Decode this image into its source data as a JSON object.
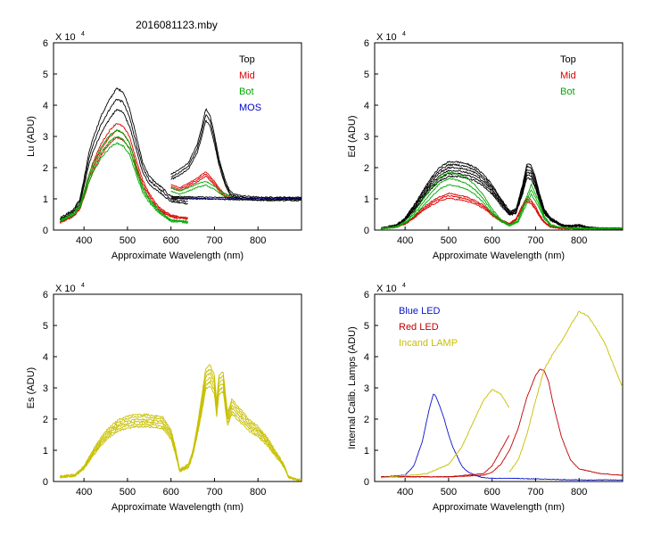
{
  "figure_title": "2016081123.mby",
  "colors": {
    "black": "#000000",
    "red": "#dd0000",
    "green": "#00aa00",
    "blue": "#0000cc",
    "yellow": "#c8c000",
    "darkred": "#c00000",
    "blue_led": "#0a14c8",
    "lamp": "#c8be00"
  },
  "chart_data": [
    {
      "id": "lu",
      "type": "line",
      "ylabel": "Lu (ADU)",
      "xlabel": "Approximate Wavelength (nm)",
      "scale_label": "X 10",
      "scale_exp": "4",
      "xlim": [
        330,
        900
      ],
      "ylim": [
        0,
        6
      ],
      "xticks": [
        400,
        500,
        600,
        700,
        800
      ],
      "yticks": [
        0,
        1,
        2,
        3,
        4,
        5,
        6
      ],
      "legend": [
        {
          "label": "Top",
          "color": "#000000"
        },
        {
          "label": "Mid",
          "color": "#dd0000"
        },
        {
          "label": "Bot",
          "color": "#00aa00"
        },
        {
          "label": "MOS",
          "color": "#0000cc"
        }
      ],
      "series": [
        {
          "name": "Top",
          "color": "#000000",
          "count": 3,
          "jitter": 0.08,
          "noise": 0.06,
          "x": [
            345,
            375,
            390,
            400,
            410,
            420,
            440,
            460,
            475,
            490,
            505,
            520,
            535,
            550,
            565,
            580,
            595,
            600,
            620,
            640
          ],
          "y": [
            0.35,
            0.6,
            0.9,
            1.5,
            2.2,
            2.7,
            3.4,
            3.9,
            4.2,
            4.1,
            3.6,
            2.8,
            2.0,
            1.6,
            1.4,
            1.25,
            1.05,
            1.0,
            0.95,
            0.92
          ]
        },
        {
          "name": "Top-red-band",
          "color": "#000000",
          "count": 3,
          "jitter": 0.05,
          "noise": 0.04,
          "x": [
            600,
            620,
            640,
            660,
            670,
            680,
            690,
            700,
            710,
            725,
            735,
            745,
            760,
            800,
            850,
            900
          ],
          "y": [
            1.7,
            1.85,
            2.05,
            2.6,
            3.1,
            3.7,
            3.5,
            2.9,
            2.2,
            1.5,
            1.2,
            1.1,
            1.05,
            1.0,
            1.0,
            1.0
          ]
        },
        {
          "name": "Mid",
          "color": "#dd0000",
          "count": 3,
          "jitter": 0.07,
          "noise": 0.05,
          "x": [
            345,
            375,
            390,
            400,
            410,
            420,
            440,
            460,
            475,
            490,
            505,
            520,
            535,
            550,
            565,
            580,
            595,
            600,
            620,
            640
          ],
          "y": [
            0.25,
            0.45,
            0.7,
            1.1,
            1.6,
            2.0,
            2.6,
            3.0,
            3.2,
            3.1,
            2.8,
            2.1,
            1.5,
            1.1,
            0.8,
            0.6,
            0.5,
            0.45,
            0.4,
            0.38
          ]
        },
        {
          "name": "Mid-red-band",
          "color": "#dd0000",
          "count": 3,
          "jitter": 0.04,
          "noise": 0.03,
          "x": [
            600,
            620,
            640,
            660,
            670,
            680,
            690,
            700,
            710,
            720,
            730,
            740
          ],
          "y": [
            1.4,
            1.3,
            1.45,
            1.6,
            1.7,
            1.8,
            1.65,
            1.5,
            1.3,
            1.15,
            1.08,
            1.02
          ]
        },
        {
          "name": "Bot",
          "color": "#00aa00",
          "count": 3,
          "jitter": 0.07,
          "noise": 0.05,
          "x": [
            345,
            375,
            390,
            400,
            410,
            420,
            440,
            460,
            475,
            490,
            505,
            520,
            535,
            550,
            565,
            580,
            595,
            600,
            620,
            640
          ],
          "y": [
            0.3,
            0.5,
            0.75,
            1.15,
            1.6,
            1.95,
            2.5,
            2.85,
            3.0,
            2.9,
            2.6,
            1.9,
            1.3,
            0.95,
            0.7,
            0.5,
            0.35,
            0.3,
            0.28,
            0.25
          ]
        },
        {
          "name": "Bot-red-band",
          "color": "#00aa00",
          "count": 2,
          "jitter": 0.04,
          "noise": 0.03,
          "x": [
            600,
            620,
            640,
            660,
            680,
            700,
            715,
            730,
            740
          ],
          "y": [
            1.3,
            1.2,
            1.3,
            1.42,
            1.5,
            1.35,
            1.2,
            1.08,
            1.02
          ]
        },
        {
          "name": "MOS",
          "color": "#0000cc",
          "count": 1,
          "jitter": 0,
          "noise": 0.02,
          "x": [
            600,
            700,
            800,
            900
          ],
          "y": [
            1.05,
            1.0,
            1.0,
            1.0
          ]
        },
        {
          "name": "baseline",
          "color": "#000000",
          "count": 2,
          "jitter": 0.03,
          "noise": 0.03,
          "x": [
            600,
            650,
            700,
            750,
            800,
            850,
            900
          ],
          "y": [
            1.05,
            1.03,
            1.02,
            1.0,
            1.0,
            1.0,
            1.0
          ]
        }
      ]
    },
    {
      "id": "ed",
      "type": "line",
      "ylabel": "Ed  (ADU)",
      "xlabel": "Approximate Wavelength (nm)",
      "scale_label": "X 10",
      "scale_exp": "4",
      "xlim": [
        330,
        900
      ],
      "ylim": [
        0,
        6
      ],
      "xticks": [
        400,
        500,
        600,
        700,
        800
      ],
      "yticks": [
        0,
        1,
        2,
        3,
        4,
        5,
        6
      ],
      "legend": [
        {
          "label": "Top",
          "color": "#000000"
        },
        {
          "label": "Mid",
          "color": "#dd0000"
        },
        {
          "label": "Bot",
          "color": "#00aa00"
        }
      ],
      "series": [
        {
          "name": "Top",
          "color": "#000000",
          "count": 6,
          "jitter": 0.12,
          "noise": 0.05,
          "x": [
            345,
            380,
            400,
            420,
            440,
            460,
            480,
            500,
            520,
            540,
            560,
            580,
            600,
            620,
            640,
            655,
            670,
            680,
            690,
            700,
            710,
            720,
            735,
            760,
            780,
            800,
            820,
            850,
            900
          ],
          "y": [
            0.05,
            0.15,
            0.35,
            0.7,
            1.1,
            1.5,
            1.8,
            1.95,
            1.95,
            1.9,
            1.8,
            1.6,
            1.3,
            0.9,
            0.55,
            0.6,
            1.3,
            1.9,
            1.85,
            1.5,
            1.0,
            0.6,
            0.35,
            0.15,
            0.12,
            0.15,
            0.08,
            0.05,
            0.05
          ]
        },
        {
          "name": "Mid",
          "color": "#dd0000",
          "count": 3,
          "jitter": 0.07,
          "noise": 0.04,
          "x": [
            345,
            380,
            400,
            420,
            440,
            460,
            480,
            500,
            520,
            540,
            560,
            580,
            600,
            620,
            640,
            655,
            670,
            680,
            690,
            700,
            710,
            720,
            735,
            760,
            800,
            850,
            900
          ],
          "y": [
            0.05,
            0.1,
            0.2,
            0.4,
            0.65,
            0.85,
            1.0,
            1.1,
            1.05,
            1.0,
            0.9,
            0.75,
            0.5,
            0.3,
            0.2,
            0.35,
            0.75,
            1.0,
            0.9,
            0.7,
            0.45,
            0.25,
            0.1,
            0.05,
            0.05,
            0.05,
            0.05
          ]
        },
        {
          "name": "Bot",
          "color": "#00aa00",
          "count": 3,
          "jitter": 0.12,
          "noise": 0.04,
          "x": [
            345,
            380,
            400,
            420,
            440,
            460,
            480,
            500,
            520,
            540,
            560,
            580,
            600,
            620,
            640,
            660,
            675,
            690,
            705,
            720,
            735,
            760,
            800,
            850,
            900
          ],
          "y": [
            0.05,
            0.1,
            0.25,
            0.5,
            0.85,
            1.2,
            1.5,
            1.65,
            1.6,
            1.5,
            1.3,
            1.0,
            0.6,
            0.3,
            0.15,
            0.3,
            0.8,
            1.3,
            0.9,
            0.4,
            0.15,
            0.08,
            0.05,
            0.05,
            0.05
          ]
        }
      ]
    },
    {
      "id": "es",
      "type": "line",
      "ylabel": "Es  (ADU)",
      "xlabel": "Approximate Wavelength (nm)",
      "scale_label": "X 10",
      "scale_exp": "4",
      "xlim": [
        330,
        900
      ],
      "ylim": [
        0,
        6
      ],
      "xticks": [
        400,
        500,
        600,
        700,
        800
      ],
      "yticks": [
        0,
        1,
        2,
        3,
        4,
        5,
        6
      ],
      "legend": [],
      "series": [
        {
          "name": "Es",
          "color": "#c8c000",
          "count": 6,
          "jitter": 0.1,
          "noise": 0.06,
          "x": [
            345,
            380,
            400,
            420,
            440,
            460,
            480,
            500,
            520,
            540,
            560,
            580,
            600,
            610,
            620,
            640,
            650,
            660,
            670,
            680,
            690,
            700,
            705,
            710,
            720,
            730,
            740,
            760,
            780,
            800,
            820,
            840,
            860,
            870,
            890,
            900
          ],
          "y": [
            0.15,
            0.2,
            0.45,
            0.9,
            1.3,
            1.6,
            1.8,
            1.9,
            1.95,
            1.95,
            1.92,
            1.9,
            1.5,
            1.0,
            0.35,
            0.5,
            0.9,
            1.6,
            2.4,
            3.3,
            3.4,
            3.1,
            2.3,
            3.1,
            3.2,
            2.0,
            2.4,
            2.1,
            1.8,
            1.6,
            1.3,
            0.9,
            0.5,
            0.15,
            0.05,
            0.05
          ]
        }
      ]
    },
    {
      "id": "lamps",
      "type": "line",
      "ylabel": "Internal Calib. Lamps (ADU)",
      "xlabel": "Approximate Wavelength (nm)",
      "scale_label": "X 10",
      "scale_exp": "4",
      "xlim": [
        330,
        900
      ],
      "ylim": [
        0,
        6
      ],
      "xticks": [
        400,
        500,
        600,
        700,
        800
      ],
      "yticks": [
        0,
        1,
        2,
        3,
        4,
        5,
        6
      ],
      "legend": [
        {
          "label": "Blue LED",
          "color": "#0a14c8"
        },
        {
          "label": "Red LED",
          "color": "#c00000"
        },
        {
          "label": "Incand LAMP",
          "color": "#c8be00"
        }
      ],
      "series": [
        {
          "name": "Blue LED",
          "color": "#0a14c8",
          "count": 1,
          "jitter": 0,
          "noise": 0.02,
          "x": [
            345,
            400,
            420,
            440,
            455,
            465,
            470,
            480,
            490,
            500,
            510,
            520,
            530,
            540,
            560,
            580,
            600,
            650,
            700,
            800,
            900
          ],
          "y": [
            0.15,
            0.2,
            0.5,
            1.3,
            2.3,
            2.8,
            2.75,
            2.4,
            2.0,
            1.5,
            1.1,
            0.8,
            0.5,
            0.35,
            0.2,
            0.12,
            0.1,
            0.1,
            0.08,
            0.05,
            0.05
          ]
        },
        {
          "name": "Red LED",
          "color": "#c00000",
          "count": 1,
          "jitter": 0,
          "noise": 0.02,
          "x": [
            345,
            500,
            580,
            600,
            620,
            640,
            660,
            680,
            700,
            710,
            720,
            730,
            740,
            760,
            780,
            800,
            850,
            900
          ],
          "y": [
            0.15,
            0.15,
            0.2,
            0.3,
            0.55,
            1.0,
            1.7,
            2.7,
            3.4,
            3.6,
            3.55,
            3.2,
            2.5,
            1.4,
            0.7,
            0.4,
            0.25,
            0.2
          ]
        },
        {
          "name": "Red LED-low",
          "color": "#c00000",
          "count": 1,
          "jitter": 0,
          "noise": 0.02,
          "x": [
            345,
            500,
            580,
            600,
            620,
            640
          ],
          "y": [
            0.15,
            0.15,
            0.25,
            0.5,
            1.0,
            1.5
          ]
        },
        {
          "name": "Incand LAMP",
          "color": "#c8be00",
          "count": 1,
          "jitter": 0,
          "noise": 0.03,
          "x": [
            345,
            450,
            500,
            530,
            560,
            580,
            600,
            620,
            640
          ],
          "y": [
            0.12,
            0.25,
            0.55,
            1.1,
            2.0,
            2.6,
            2.95,
            2.8,
            2.35
          ]
        },
        {
          "name": "Incand LAMP-high",
          "color": "#c8be00",
          "count": 1,
          "jitter": 0,
          "noise": 0.04,
          "x": [
            640,
            660,
            680,
            700,
            720,
            740,
            760,
            780,
            800,
            820,
            840,
            860,
            880,
            900
          ],
          "y": [
            0.3,
            0.7,
            1.5,
            2.6,
            3.6,
            4.1,
            4.5,
            5.0,
            5.45,
            5.3,
            4.9,
            4.4,
            3.7,
            3.0
          ]
        }
      ]
    }
  ]
}
